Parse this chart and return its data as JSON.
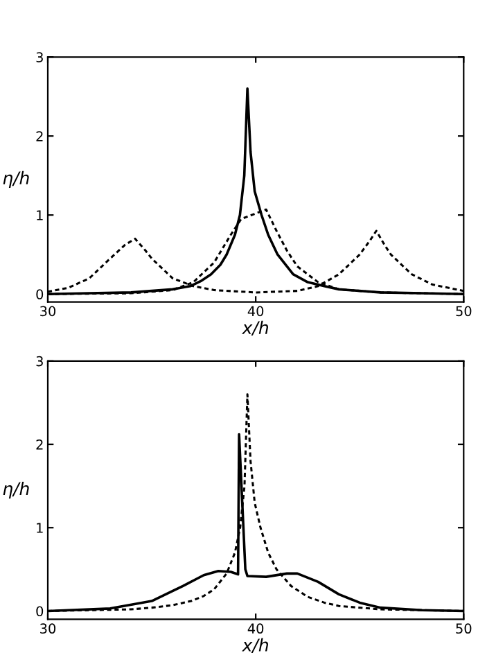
{
  "chart_data": [
    {
      "type": "line",
      "xlabel": "x/h",
      "ylabel": "η/h",
      "xlim": [
        30,
        50
      ],
      "ylim": [
        -0.1,
        3
      ],
      "xticks": [
        30,
        40,
        50
      ],
      "yticks": [
        0,
        1,
        2,
        3
      ],
      "grid": false,
      "legend": false,
      "series": [
        {
          "color": "#000000",
          "line_style": "solid",
          "x": [
            30,
            32,
            34,
            35,
            36,
            36.85,
            37.4,
            37.85,
            38.3,
            38.6,
            39.0,
            39.24,
            39.45,
            39.6,
            39.75,
            39.95,
            40.28,
            40.6,
            41.05,
            41.8,
            42.5,
            43.3,
            44,
            46,
            48,
            50
          ],
          "values": [
            0.0,
            0.01,
            0.02,
            0.04,
            0.06,
            0.1,
            0.17,
            0.25,
            0.37,
            0.5,
            0.75,
            1.0,
            1.5,
            2.6,
            1.8,
            1.3,
            1.0,
            0.75,
            0.5,
            0.25,
            0.15,
            0.1,
            0.06,
            0.02,
            0.01,
            0.0
          ]
        },
        {
          "color": "#000000",
          "line_style": "dashed",
          "x": [
            30,
            31,
            32,
            33,
            33.7,
            34.2,
            34.7,
            35,
            36,
            37,
            38,
            40,
            42,
            43,
            44,
            45,
            45.5,
            45.8,
            46.2,
            46.5,
            47.5,
            48.5,
            50
          ],
          "values": [
            0.03,
            0.08,
            0.2,
            0.45,
            0.62,
            0.7,
            0.55,
            0.45,
            0.2,
            0.1,
            0.05,
            0.02,
            0.04,
            0.1,
            0.25,
            0.5,
            0.68,
            0.8,
            0.62,
            0.5,
            0.25,
            0.12,
            0.04
          ]
        },
        {
          "color": "#000000",
          "line_style": "dashed",
          "x": [
            30,
            34,
            36,
            37,
            38,
            38.8,
            39.3,
            40,
            40.5,
            41,
            41.5,
            42,
            43,
            44,
            46,
            50
          ],
          "values": [
            0.0,
            0.01,
            0.05,
            0.15,
            0.4,
            0.75,
            0.95,
            1.02,
            1.07,
            0.8,
            0.55,
            0.35,
            0.15,
            0.06,
            0.02,
            0.0
          ]
        }
      ]
    },
    {
      "type": "line",
      "xlabel": "x/h",
      "ylabel": "η/h",
      "xlim": [
        30,
        50
      ],
      "ylim": [
        -0.1,
        3
      ],
      "xticks": [
        30,
        40,
        50
      ],
      "yticks": [
        0,
        1,
        2,
        3
      ],
      "grid": false,
      "legend": false,
      "series": [
        {
          "color": "#000000",
          "line_style": "solid",
          "x": [
            30,
            33,
            35,
            36.5,
            37.5,
            38.2,
            38.8,
            39.15,
            39.2,
            39.5,
            39.6,
            40.5,
            41.5,
            42,
            43,
            44,
            45,
            46,
            48,
            50
          ],
          "values": [
            0.0,
            0.03,
            0.12,
            0.3,
            0.43,
            0.48,
            0.47,
            0.44,
            2.12,
            0.5,
            0.42,
            0.41,
            0.45,
            0.45,
            0.35,
            0.2,
            0.1,
            0.04,
            0.01,
            0.0
          ]
        },
        {
          "color": "#000000",
          "line_style": "dashed",
          "x": [
            30,
            32,
            34,
            35,
            36,
            36.9,
            37.5,
            38,
            38.6,
            39.0,
            39.25,
            39.46,
            39.6,
            39.75,
            39.95,
            40.23,
            40.6,
            41.0,
            41.7,
            42.5,
            43.3,
            44,
            46,
            48,
            50
          ],
          "values": [
            0.0,
            0.01,
            0.02,
            0.04,
            0.07,
            0.12,
            0.18,
            0.26,
            0.45,
            0.7,
            1.0,
            1.5,
            2.6,
            1.8,
            1.3,
            1.0,
            0.7,
            0.5,
            0.3,
            0.17,
            0.1,
            0.06,
            0.02,
            0.01,
            0.0
          ]
        }
      ]
    }
  ]
}
